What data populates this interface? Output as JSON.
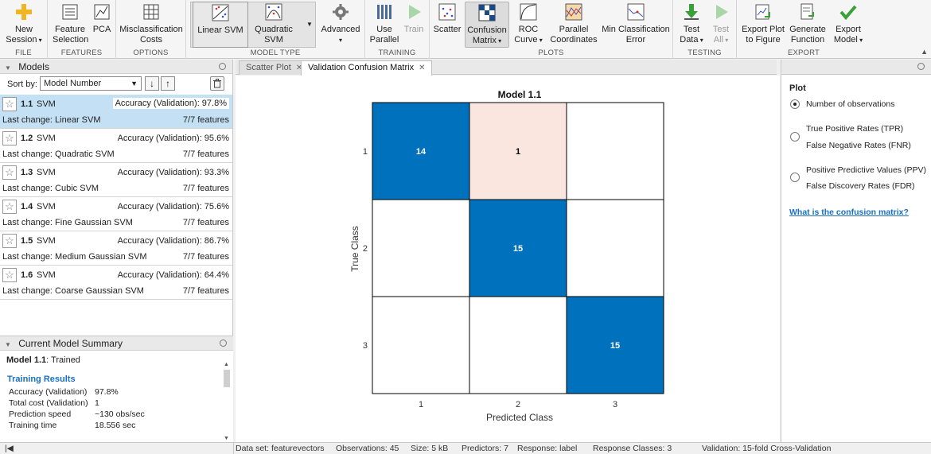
{
  "toolstrip": {
    "groups": [
      {
        "label": "FILE"
      },
      {
        "label": "FEATURES"
      },
      {
        "label": "OPTIONS"
      },
      {
        "label": "MODEL TYPE"
      },
      {
        "label": "TRAINING"
      },
      {
        "label": "PLOTS"
      },
      {
        "label": "TESTING"
      },
      {
        "label": "EXPORT"
      }
    ],
    "buttons": {
      "new_session": "New\nSession",
      "feature_selection": "Feature\nSelection",
      "pca": "PCA",
      "misclassification_costs": "Misclassification\nCosts",
      "linear_svm": "Linear SVM",
      "quadratic_svm": "Quadratic\nSVM",
      "advanced": "Advanced",
      "use_parallel": "Use\nParallel",
      "train": "Train",
      "scatter": "Scatter",
      "confusion_matrix": "Confusion\nMatrix",
      "roc_curve": "ROC\nCurve",
      "parallel_coordinates": "Parallel\nCoordinates",
      "min_classification_error": "Min Classification\nError",
      "test_data": "Test\nData",
      "test_all": "Test\nAll",
      "export_plot": "Export Plot\nto Figure",
      "generate_function": "Generate\nFunction",
      "export_model": "Export\nModel"
    }
  },
  "models_panel": {
    "title": "Models",
    "sort_label": "Sort by:",
    "sort_value": "Model Number",
    "models": [
      {
        "num": "1.1",
        "type": "SVM",
        "accuracy": "Accuracy (Validation): 97.8%",
        "change": "Last change: Linear SVM",
        "features": "7/7 features"
      },
      {
        "num": "1.2",
        "type": "SVM",
        "accuracy": "Accuracy (Validation): 95.6%",
        "change": "Last change: Quadratic SVM",
        "features": "7/7 features"
      },
      {
        "num": "1.3",
        "type": "SVM",
        "accuracy": "Accuracy (Validation): 93.3%",
        "change": "Last change: Cubic SVM",
        "features": "7/7 features"
      },
      {
        "num": "1.4",
        "type": "SVM",
        "accuracy": "Accuracy (Validation): 75.6%",
        "change": "Last change: Fine Gaussian SVM",
        "features": "7/7 features"
      },
      {
        "num": "1.5",
        "type": "SVM",
        "accuracy": "Accuracy (Validation): 86.7%",
        "change": "Last change: Medium Gaussian SVM",
        "features": "7/7 features"
      },
      {
        "num": "1.6",
        "type": "SVM",
        "accuracy": "Accuracy (Validation): 64.4%",
        "change": "Last change: Coarse Gaussian SVM",
        "features": "7/7 features"
      }
    ]
  },
  "summary": {
    "title": "Current Model Summary",
    "model_name": "Model 1.1",
    "model_status": ": Trained",
    "section": "Training Results",
    "rows": [
      {
        "k": "Accuracy (Validation)",
        "v": "97.8%"
      },
      {
        "k": "Total cost (Validation)",
        "v": "1"
      },
      {
        "k": "Prediction speed",
        "v": "~130 obs/sec"
      },
      {
        "k": "Training time",
        "v": "18.556 sec"
      }
    ]
  },
  "tabs": [
    {
      "label": "Scatter Plot"
    },
    {
      "label": "Validation Confusion Matrix"
    }
  ],
  "chart_data": {
    "type": "heatmap",
    "title": "Model 1.1",
    "xlabel": "Predicted Class",
    "ylabel": "True Class",
    "x_categories": [
      "1",
      "2",
      "3"
    ],
    "y_categories": [
      "1",
      "2",
      "3"
    ],
    "matrix": [
      [
        14,
        1,
        0
      ],
      [
        0,
        15,
        0
      ],
      [
        0,
        0,
        15
      ]
    ],
    "colors": {
      "diagonal": "#0072bd",
      "off_diagonal": "#fbe6df",
      "empty": "#ffffff",
      "diag_text": "#ffffff",
      "off_text": "#000000"
    }
  },
  "plot_options": {
    "title": "Plot",
    "options": [
      {
        "lines": [
          "Number of observations"
        ],
        "selected": true
      },
      {
        "lines": [
          "True Positive Rates (TPR)",
          "False Negative Rates (FNR)"
        ],
        "selected": false
      },
      {
        "lines": [
          "Positive Predictive Values (PPV)",
          "False Discovery Rates (FDR)"
        ],
        "selected": false
      }
    ],
    "help_link": "What is the confusion matrix?"
  },
  "status": {
    "dataset": "Data set: featurevectors",
    "observations": "Observations: 45",
    "size": "Size: 5 kB",
    "predictors": "Predictors: 7",
    "response": "Response: label",
    "response_classes": "Response Classes: 3",
    "validation": "Validation: 15-fold Cross-Validation"
  }
}
